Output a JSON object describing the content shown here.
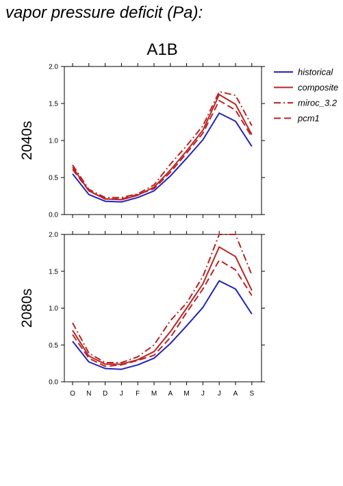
{
  "figure": {
    "heading": "vapor pressure deficit (Pa):",
    "title": "A1B"
  },
  "colors": {
    "historical": "#2222bb",
    "scenario": "#bb2222"
  },
  "chart_data": [
    {
      "type": "line",
      "panel_label": "2040s",
      "x": [
        "O",
        "N",
        "D",
        "J",
        "F",
        "M",
        "A",
        "M",
        "J",
        "J",
        "A",
        "S"
      ],
      "ylim": [
        0.0,
        2.0
      ],
      "yticks": [
        "0.0",
        "0.5",
        "1.0",
        "1.5",
        "2.0"
      ],
      "grid": false,
      "legend_position": "right",
      "series": [
        {
          "name": "historical",
          "style": "solid",
          "color": "historical",
          "values": [
            0.55,
            0.27,
            0.18,
            0.17,
            0.23,
            0.32,
            0.52,
            0.76,
            1.01,
            1.37,
            1.26,
            0.92
          ]
        },
        {
          "name": "composite",
          "style": "solid",
          "color": "scenario",
          "values": [
            0.64,
            0.32,
            0.21,
            0.2,
            0.26,
            0.37,
            0.6,
            0.86,
            1.14,
            1.62,
            1.49,
            1.08
          ]
        },
        {
          "name": "miroc_3.2",
          "style": "dashdot",
          "color": "scenario",
          "values": [
            0.67,
            0.34,
            0.23,
            0.23,
            0.28,
            0.4,
            0.68,
            0.93,
            1.2,
            1.66,
            1.61,
            1.2
          ]
        },
        {
          "name": "pcm1",
          "style": "dashed",
          "color": "scenario",
          "values": [
            0.61,
            0.32,
            0.21,
            0.21,
            0.27,
            0.35,
            0.57,
            0.83,
            1.1,
            1.54,
            1.41,
            1.05
          ]
        }
      ]
    },
    {
      "type": "line",
      "panel_label": "2080s",
      "x": [
        "O",
        "N",
        "D",
        "J",
        "F",
        "M",
        "A",
        "M",
        "J",
        "J",
        "A",
        "S"
      ],
      "ylim": [
        0.0,
        2.0
      ],
      "yticks": [
        "0.0",
        "0.5",
        "1.0",
        "1.5",
        "2.0"
      ],
      "grid": false,
      "series": [
        {
          "name": "historical",
          "style": "solid",
          "color": "historical",
          "values": [
            0.55,
            0.27,
            0.18,
            0.17,
            0.23,
            0.32,
            0.52,
            0.76,
            1.01,
            1.37,
            1.26,
            0.92
          ]
        },
        {
          "name": "composite",
          "style": "solid",
          "color": "scenario",
          "values": [
            0.7,
            0.35,
            0.24,
            0.24,
            0.3,
            0.41,
            0.68,
            1.0,
            1.33,
            1.83,
            1.7,
            1.24
          ]
        },
        {
          "name": "miroc_3.2",
          "style": "dashdot",
          "color": "scenario",
          "values": [
            0.8,
            0.39,
            0.26,
            0.26,
            0.34,
            0.5,
            0.83,
            1.07,
            1.43,
            2.0,
            2.0,
            1.45
          ]
        },
        {
          "name": "pcm1",
          "style": "dashed",
          "color": "scenario",
          "values": [
            0.64,
            0.32,
            0.21,
            0.23,
            0.29,
            0.36,
            0.6,
            0.94,
            1.26,
            1.65,
            1.52,
            1.17
          ]
        }
      ]
    }
  ]
}
